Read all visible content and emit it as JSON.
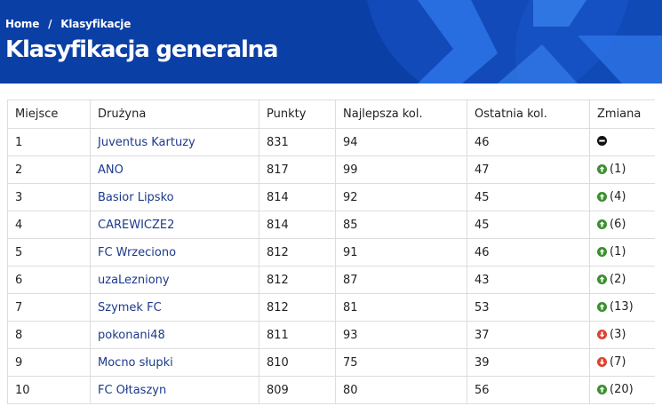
{
  "breadcrumb": {
    "home": "Home",
    "separator": "/",
    "current": "Klasyfikacje"
  },
  "page_title": "Klasyfikacja generalna",
  "colors": {
    "header_bg": "#0a3fa6",
    "link": "#1b3a8c",
    "up": "#3a8f2e",
    "down": "#d9432f",
    "neutral": "#111111"
  },
  "table": {
    "headers": [
      "Miejsce",
      "Drużyna",
      "Punkty",
      "Najlepsza kol.",
      "Ostatnia kol.",
      "Zmiana"
    ],
    "rows": [
      {
        "place": "1",
        "team": "Juventus Kartuzy",
        "points": "831",
        "best": "94",
        "last": "46",
        "change_icon": "no-change-icon",
        "change": ""
      },
      {
        "place": "2",
        "team": "ANO",
        "points": "817",
        "best": "99",
        "last": "47",
        "change_icon": "arrow-up-icon",
        "change": "(1)"
      },
      {
        "place": "3",
        "team": "Basior Lipsko",
        "points": "814",
        "best": "92",
        "last": "45",
        "change_icon": "arrow-up-icon",
        "change": "(4)"
      },
      {
        "place": "4",
        "team": "CAREWICZE2",
        "points": "814",
        "best": "85",
        "last": "45",
        "change_icon": "arrow-up-icon",
        "change": "(6)"
      },
      {
        "place": "5",
        "team": "FC Wrzeciono",
        "points": "812",
        "best": "91",
        "last": "46",
        "change_icon": "arrow-up-icon",
        "change": "(1)"
      },
      {
        "place": "6",
        "team": "uzaLezniony",
        "points": "812",
        "best": "87",
        "last": "43",
        "change_icon": "arrow-up-icon",
        "change": "(2)"
      },
      {
        "place": "7",
        "team": "Szymek FC",
        "points": "812",
        "best": "81",
        "last": "53",
        "change_icon": "arrow-up-icon",
        "change": "(13)"
      },
      {
        "place": "8",
        "team": "pokonani48",
        "points": "811",
        "best": "93",
        "last": "37",
        "change_icon": "arrow-down-icon",
        "change": "(3)"
      },
      {
        "place": "9",
        "team": "Mocno słupki",
        "points": "810",
        "best": "75",
        "last": "39",
        "change_icon": "arrow-down-icon",
        "change": "(7)"
      },
      {
        "place": "10",
        "team": "FC Ołtaszyn",
        "points": "809",
        "best": "80",
        "last": "56",
        "change_icon": "arrow-up-icon",
        "change": "(20)"
      }
    ]
  }
}
